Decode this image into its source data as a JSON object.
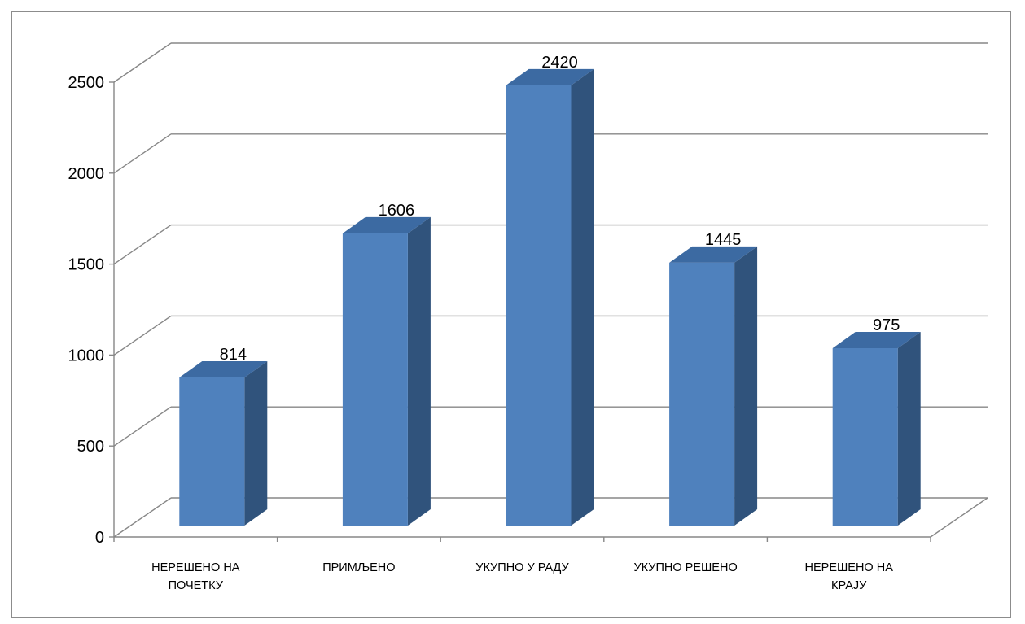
{
  "chart_data": {
    "type": "bar",
    "title": "",
    "xlabel": "",
    "ylabel": "",
    "categories": [
      [
        "НЕРЕШЕНО НА",
        "ПОЧЕТКУ"
      ],
      [
        "ПРИМЉЕНО"
      ],
      [
        "УКУПНО У РАДУ"
      ],
      [
        "УКУПНО РЕШЕНО"
      ],
      [
        "НЕРЕШЕНО НА",
        "КРАЈУ"
      ]
    ],
    "values": [
      814,
      1606,
      2420,
      1445,
      975
    ],
    "data_labels": [
      "814",
      "1606",
      "2420",
      "1445",
      "975"
    ],
    "ylim": [
      0,
      2500
    ],
    "y_ticks": [
      0,
      500,
      1000,
      1500,
      2000,
      2500
    ],
    "y_tick_labels": [
      "0",
      "500",
      "1000",
      "1500",
      "2000",
      "2500"
    ],
    "grid": true,
    "style": "3d-column",
    "colors": {
      "bar_front": "#4f81bd",
      "bar_side": "#30537c",
      "bar_top": "#3c6aa2",
      "gridline": "#878787",
      "axis": "#878787"
    }
  }
}
